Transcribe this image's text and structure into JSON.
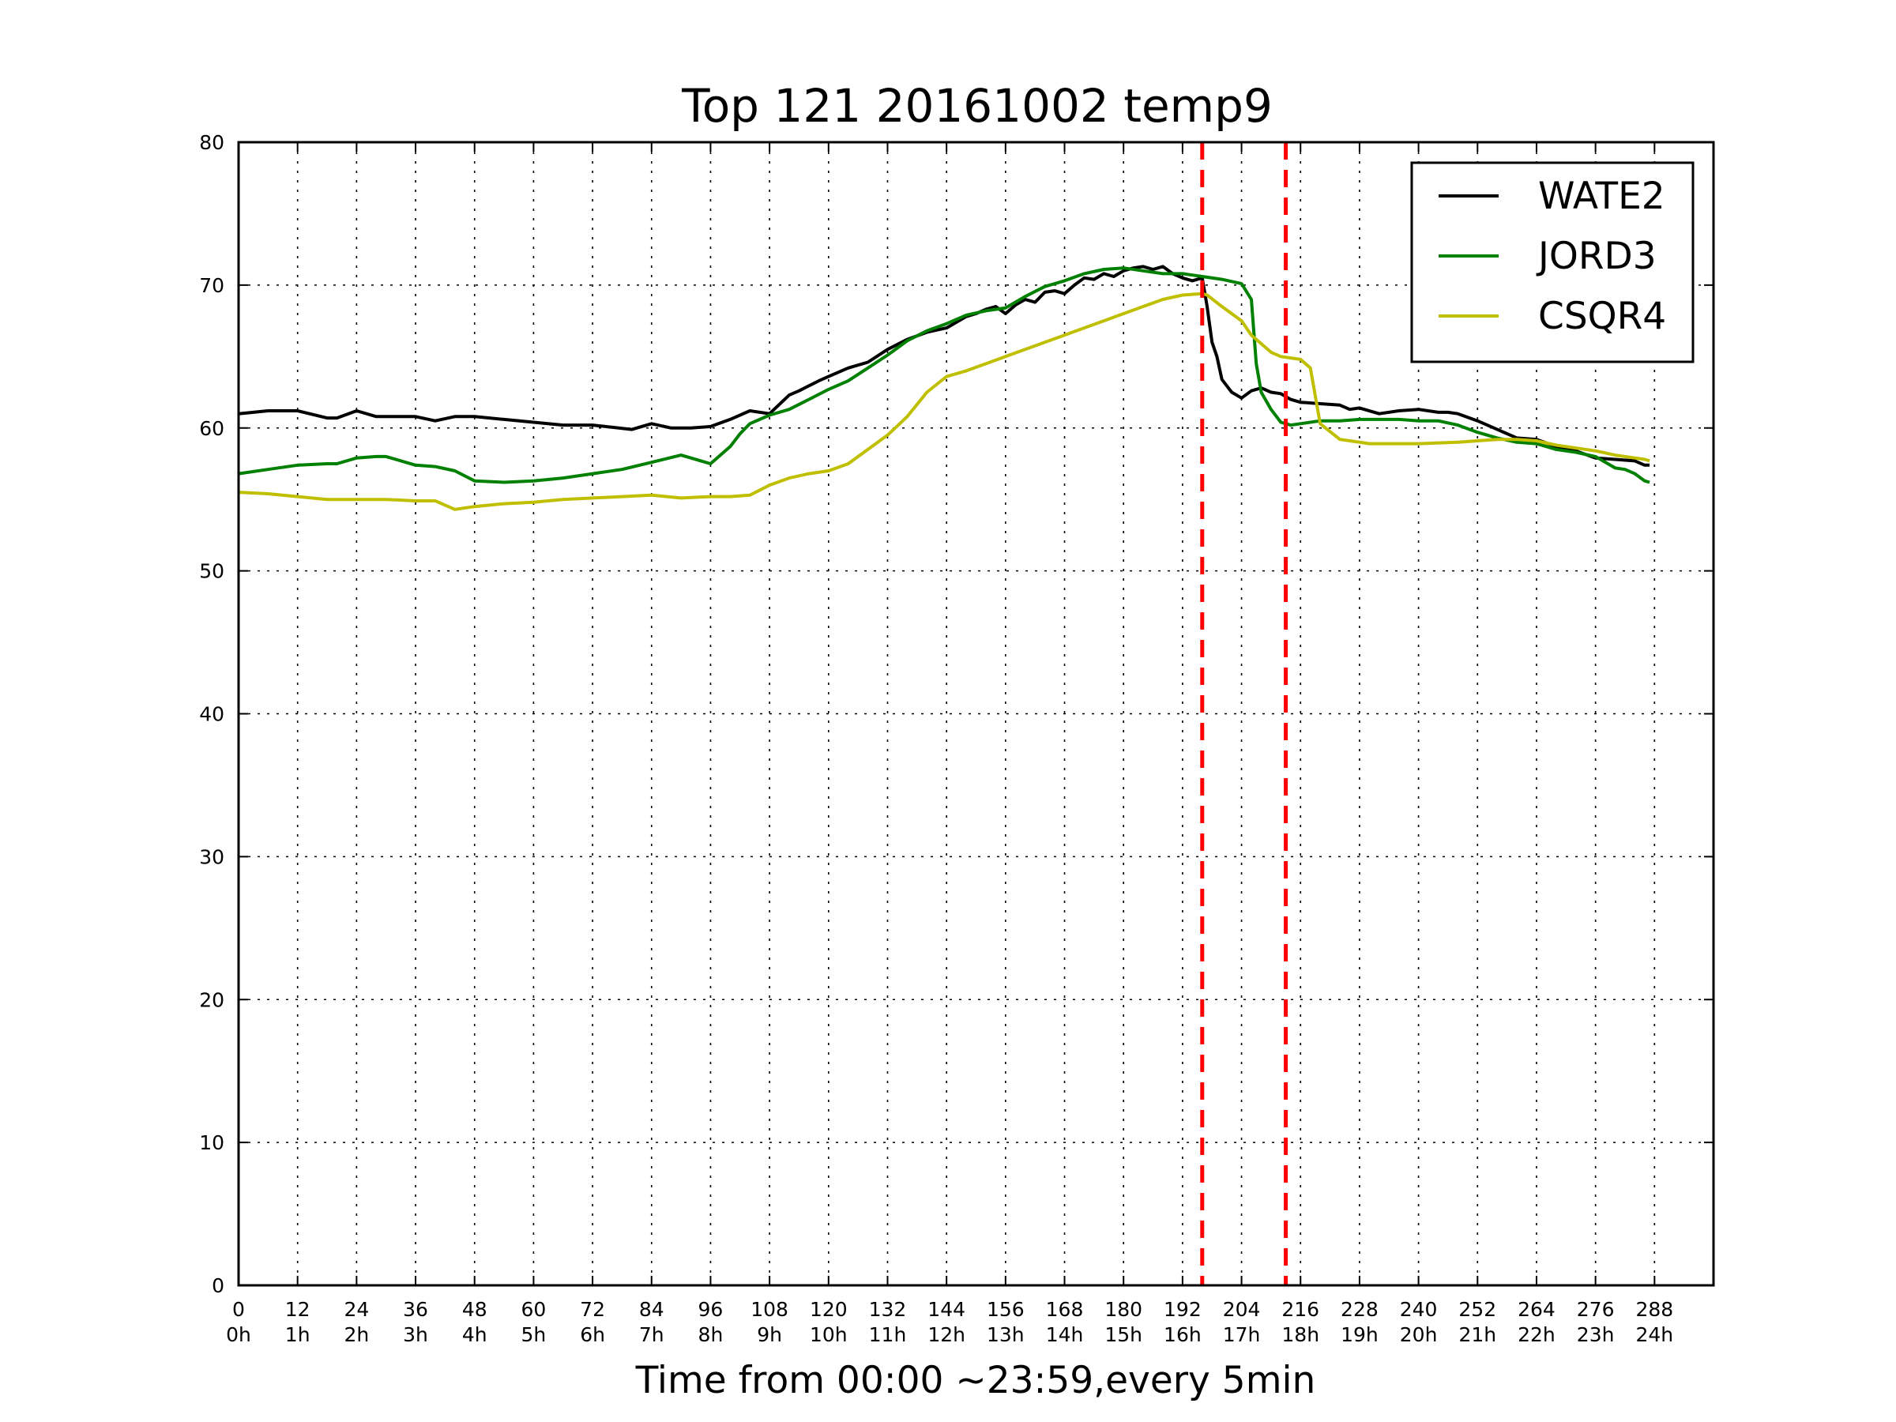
{
  "chart_data": {
    "type": "line",
    "title": "Top 121 20161002 temp9",
    "xlabel": "Time from 00:00 ~23:59,every 5min",
    "ylabel": "",
    "xlim": [
      0,
      300
    ],
    "ylim": [
      0,
      80
    ],
    "grid": true,
    "legend_position": "top-right",
    "x_ticks": [
      {
        "value": 0,
        "label1": "0",
        "label2": "0h"
      },
      {
        "value": 12,
        "label1": "12",
        "label2": "1h"
      },
      {
        "value": 24,
        "label1": "24",
        "label2": "2h"
      },
      {
        "value": 36,
        "label1": "36",
        "label2": "3h"
      },
      {
        "value": 48,
        "label1": "48",
        "label2": "4h"
      },
      {
        "value": 60,
        "label1": "60",
        "label2": "5h"
      },
      {
        "value": 72,
        "label1": "72",
        "label2": "6h"
      },
      {
        "value": 84,
        "label1": "84",
        "label2": "7h"
      },
      {
        "value": 96,
        "label1": "96",
        "label2": "8h"
      },
      {
        "value": 108,
        "label1": "108",
        "label2": "9h"
      },
      {
        "value": 120,
        "label1": "120",
        "label2": "10h"
      },
      {
        "value": 132,
        "label1": "132",
        "label2": "11h"
      },
      {
        "value": 144,
        "label1": "144",
        "label2": "12h"
      },
      {
        "value": 156,
        "label1": "156",
        "label2": "13h"
      },
      {
        "value": 168,
        "label1": "168",
        "label2": "14h"
      },
      {
        "value": 180,
        "label1": "180",
        "label2": "15h"
      },
      {
        "value": 192,
        "label1": "192",
        "label2": "16h"
      },
      {
        "value": 204,
        "label1": "204",
        "label2": "17h"
      },
      {
        "value": 216,
        "label1": "216",
        "label2": "18h"
      },
      {
        "value": 228,
        "label1": "228",
        "label2": "19h"
      },
      {
        "value": 240,
        "label1": "240",
        "label2": "20h"
      },
      {
        "value": 252,
        "label1": "252",
        "label2": "21h"
      },
      {
        "value": 264,
        "label1": "264",
        "label2": "22h"
      },
      {
        "value": 276,
        "label1": "276",
        "label2": "23h"
      },
      {
        "value": 288,
        "label1": "288",
        "label2": "24h"
      }
    ],
    "y_ticks": [
      0,
      10,
      20,
      30,
      40,
      50,
      60,
      70,
      80
    ],
    "vlines": [
      {
        "x": 196,
        "color": "#ff0000",
        "style": "dashed"
      },
      {
        "x": 213,
        "color": "#ff0000",
        "style": "dashed"
      }
    ],
    "series": [
      {
        "name": "WATE2",
        "color": "#000000",
        "x": [
          0,
          6,
          12,
          18,
          20,
          24,
          28,
          36,
          40,
          44,
          48,
          54,
          60,
          66,
          72,
          80,
          84,
          88,
          92,
          96,
          100,
          104,
          108,
          112,
          114,
          118,
          120,
          124,
          128,
          132,
          136,
          140,
          144,
          148,
          150,
          152,
          154,
          156,
          158,
          160,
          162,
          164,
          166,
          168,
          170,
          172,
          174,
          176,
          178,
          180,
          182,
          184,
          186,
          188,
          190,
          192,
          194,
          196,
          197,
          198,
          199,
          200,
          202,
          204,
          206,
          208,
          210,
          212,
          214,
          216,
          220,
          224,
          226,
          228,
          232,
          236,
          240,
          244,
          246,
          248,
          252,
          256,
          260,
          264,
          268,
          272,
          276,
          280,
          284,
          286,
          287
        ],
        "y": [
          61.0,
          61.2,
          61.2,
          60.7,
          60.7,
          61.2,
          60.8,
          60.8,
          60.5,
          60.8,
          60.8,
          60.6,
          60.4,
          60.2,
          60.2,
          59.9,
          60.3,
          60.0,
          60.0,
          60.1,
          60.6,
          61.2,
          61.0,
          62.3,
          62.6,
          63.3,
          63.6,
          64.2,
          64.6,
          65.5,
          66.2,
          66.7,
          67.0,
          67.8,
          68.0,
          68.3,
          68.5,
          68.0,
          68.6,
          69.0,
          68.8,
          69.5,
          69.6,
          69.4,
          70.0,
          70.5,
          70.4,
          70.8,
          70.6,
          71.0,
          71.2,
          71.3,
          71.1,
          71.3,
          70.8,
          70.5,
          70.3,
          70.5,
          68.5,
          66.0,
          65.0,
          63.4,
          62.5,
          62.1,
          62.6,
          62.8,
          62.5,
          62.4,
          62.0,
          61.8,
          61.7,
          61.6,
          61.3,
          61.4,
          61.0,
          61.2,
          61.3,
          61.1,
          61.1,
          61.0,
          60.5,
          59.9,
          59.3,
          59.2,
          58.7,
          58.4,
          57.9,
          57.8,
          57.7,
          57.4,
          57.4
        ]
      },
      {
        "name": "JORD3",
        "color": "#008000",
        "x": [
          0,
          6,
          12,
          18,
          20,
          24,
          28,
          30,
          36,
          40,
          44,
          48,
          54,
          60,
          66,
          72,
          78,
          84,
          90,
          92,
          96,
          100,
          102,
          104,
          108,
          112,
          116,
          120,
          124,
          128,
          132,
          136,
          140,
          144,
          148,
          152,
          156,
          160,
          164,
          168,
          172,
          176,
          180,
          184,
          188,
          192,
          194,
          196,
          200,
          204,
          206,
          207,
          208,
          210,
          212,
          214,
          216,
          220,
          224,
          228,
          232,
          236,
          240,
          244,
          248,
          252,
          256,
          260,
          264,
          268,
          272,
          276,
          280,
          282,
          284,
          286,
          287
        ],
        "y": [
          56.8,
          57.1,
          57.4,
          57.5,
          57.5,
          57.9,
          58.0,
          58.0,
          57.4,
          57.3,
          57.0,
          56.3,
          56.2,
          56.3,
          56.5,
          56.8,
          57.1,
          57.6,
          58.1,
          57.9,
          57.5,
          58.7,
          59.6,
          60.3,
          60.9,
          61.3,
          62.0,
          62.7,
          63.3,
          64.2,
          65.1,
          66.1,
          66.8,
          67.3,
          67.9,
          68.2,
          68.4,
          69.2,
          69.9,
          70.3,
          70.8,
          71.1,
          71.2,
          71.0,
          70.8,
          70.8,
          70.7,
          70.6,
          70.4,
          70.1,
          69.0,
          64.5,
          62.5,
          61.3,
          60.4,
          60.2,
          60.3,
          60.5,
          60.5,
          60.6,
          60.6,
          60.6,
          60.5,
          60.5,
          60.2,
          59.7,
          59.3,
          59.0,
          58.9,
          58.5,
          58.3,
          58.0,
          57.2,
          57.1,
          56.8,
          56.3,
          56.2
        ]
      },
      {
        "name": "CSQR4",
        "color": "#bfbf00",
        "x": [
          0,
          6,
          12,
          18,
          24,
          30,
          36,
          40,
          44,
          48,
          54,
          60,
          66,
          72,
          78,
          84,
          90,
          96,
          100,
          104,
          108,
          112,
          116,
          120,
          124,
          128,
          132,
          136,
          140,
          144,
          148,
          152,
          156,
          160,
          164,
          168,
          172,
          176,
          180,
          184,
          188,
          192,
          196,
          197,
          200,
          204,
          206,
          210,
          212,
          214,
          216,
          218,
          220,
          224,
          230,
          236,
          240,
          248,
          252,
          256,
          260,
          264,
          268,
          272,
          276,
          280,
          284,
          286,
          287
        ],
        "y": [
          55.5,
          55.4,
          55.2,
          55.0,
          55.0,
          55.0,
          54.9,
          54.9,
          54.3,
          54.5,
          54.7,
          54.8,
          55.0,
          55.1,
          55.2,
          55.3,
          55.1,
          55.2,
          55.2,
          55.3,
          56.0,
          56.5,
          56.8,
          57.0,
          57.5,
          58.5,
          59.5,
          60.8,
          62.5,
          63.6,
          64.0,
          64.5,
          65.0,
          65.5,
          66.0,
          66.5,
          67.0,
          67.5,
          68.0,
          68.5,
          69.0,
          69.3,
          69.4,
          69.3,
          68.5,
          67.5,
          66.5,
          65.3,
          65.0,
          64.9,
          64.8,
          64.2,
          60.3,
          59.2,
          58.9,
          58.9,
          58.9,
          59.0,
          59.1,
          59.2,
          59.2,
          59.1,
          58.8,
          58.6,
          58.4,
          58.1,
          57.9,
          57.8,
          57.7
        ]
      }
    ]
  }
}
